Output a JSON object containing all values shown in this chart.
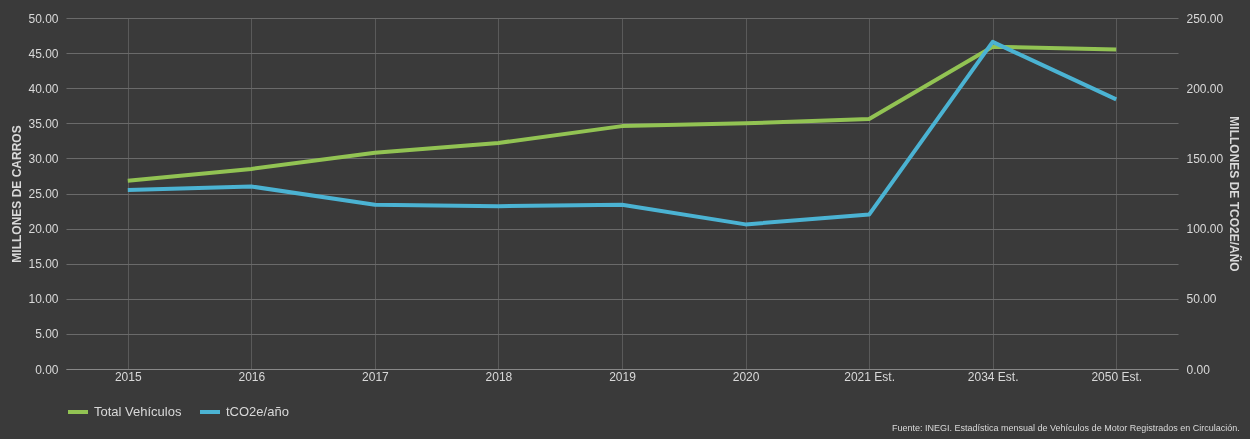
{
  "chart_data": {
    "type": "line",
    "categories": [
      "2015",
      "2016",
      "2017",
      "2018",
      "2019",
      "2020",
      "2021 Est.",
      "2034 Est.",
      "2050 Est."
    ],
    "ylabel": "MILLONES DE CARROS",
    "y2label": "MILLONES DE TCO2E/AÑO",
    "ylim": [
      0,
      50
    ],
    "yticks": [
      {
        "value": 0,
        "label": "0.00"
      },
      {
        "value": 5,
        "label": "5.00"
      },
      {
        "value": 10,
        "label": "10.00"
      },
      {
        "value": 15,
        "label": "15.00"
      },
      {
        "value": 20,
        "label": "20.00"
      },
      {
        "value": 25,
        "label": "25.00"
      },
      {
        "value": 30,
        "label": "30.00"
      },
      {
        "value": 35,
        "label": "35.00"
      },
      {
        "value": 40,
        "label": "40.00"
      },
      {
        "value": 45,
        "label": "45.00"
      },
      {
        "value": 50,
        "label": "50.00"
      }
    ],
    "y2lim": [
      0,
      250
    ],
    "y2ticks": [
      {
        "value": 0,
        "label": "0.00"
      },
      {
        "value": 50,
        "label": "50.00"
      },
      {
        "value": 100,
        "label": "100.00"
      },
      {
        "value": 150,
        "label": "150.00"
      },
      {
        "value": 200,
        "label": "200.00"
      },
      {
        "value": 250,
        "label": "250.00"
      }
    ],
    "series": [
      {
        "name": "Total Vehículos",
        "color": "#92c353",
        "values": [
          26.8,
          28.5,
          30.8,
          32.2,
          34.6,
          35.0,
          35.6,
          45.9,
          45.5
        ]
      },
      {
        "name": "tCO2e/año",
        "color": "#4bb3d3",
        "axis": "y2",
        "values": [
          127.5,
          130,
          117,
          116,
          117,
          103,
          110,
          233,
          192
        ]
      }
    ],
    "grid": true,
    "legend": "bottom",
    "marker": "none",
    "line_style": "solid",
    "annotations": [
      "Fuente: INEGI. Estadística mensual de Vehículos de Motor Registrados en Circulación."
    ]
  }
}
